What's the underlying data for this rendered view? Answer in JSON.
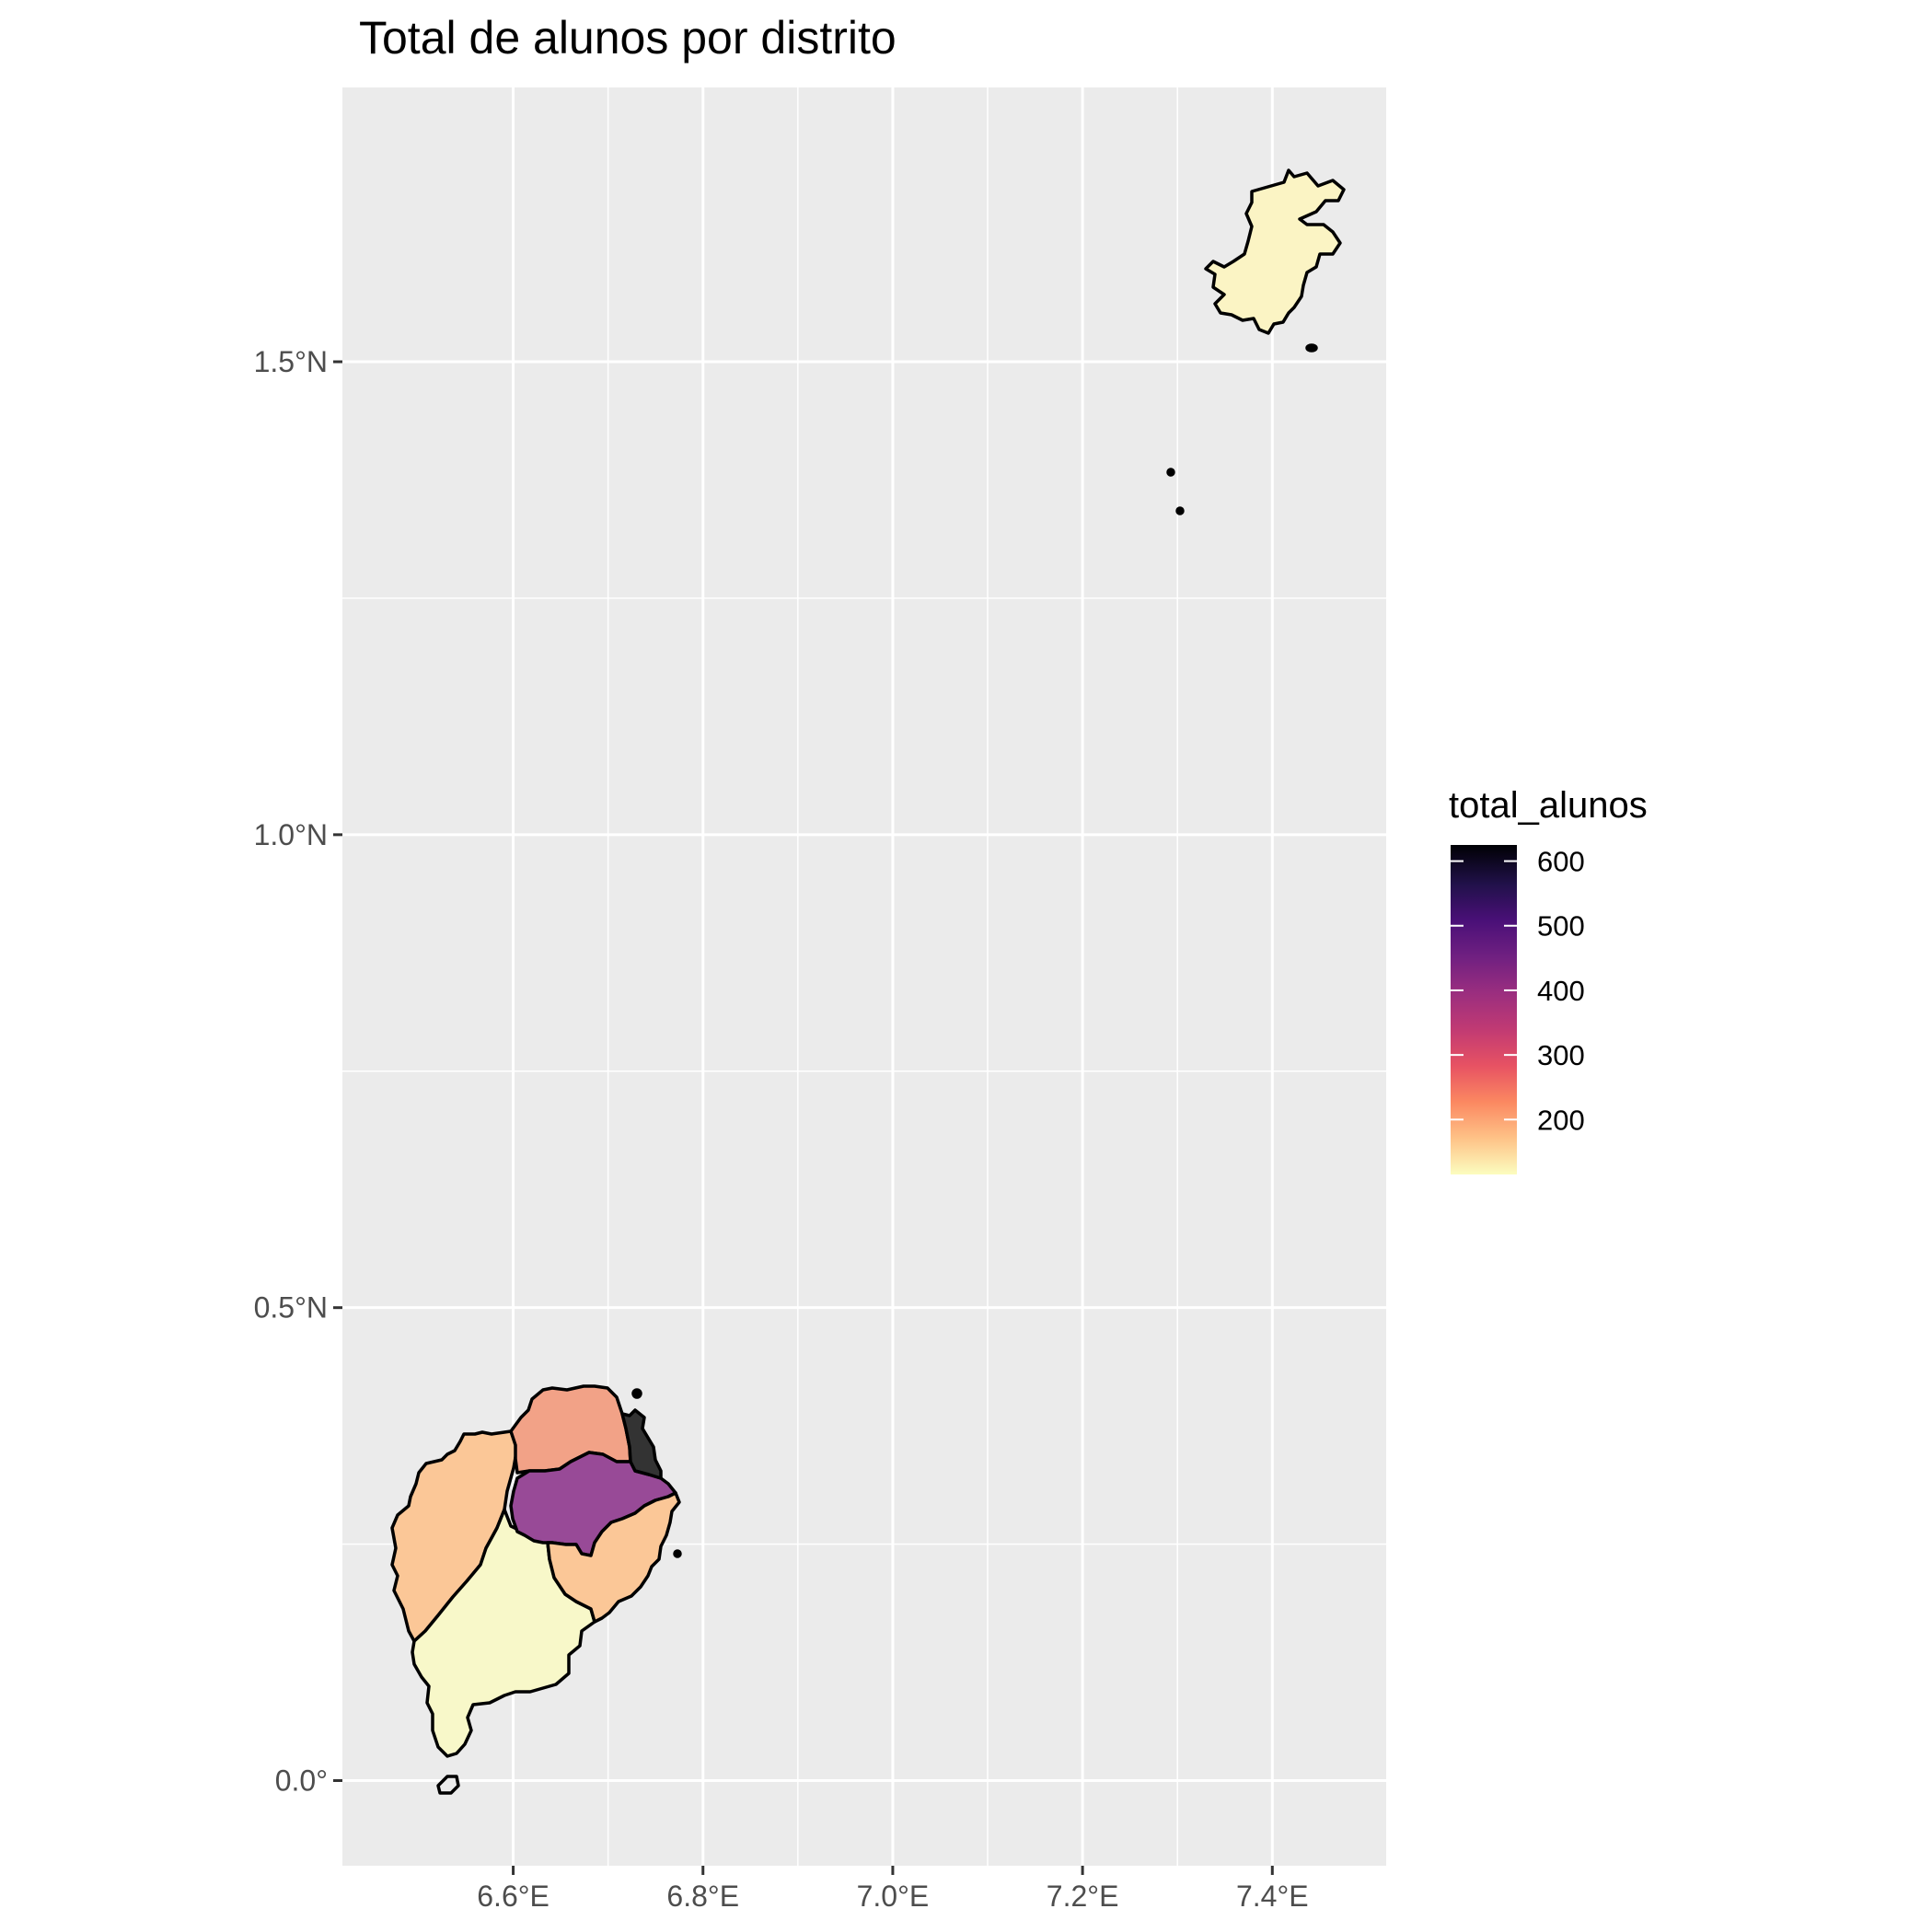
{
  "chart_data": {
    "type": "choropleth map",
    "title": "Total de alunos por distrito",
    "x_ticks": [
      "6.6°E",
      "6.8°E",
      "7.0°E",
      "7.2°E",
      "7.4°E"
    ],
    "y_ticks": [
      "0.0°",
      "0.5°N",
      "1.0°N",
      "1.5°N"
    ],
    "x_tick_values": [
      6.6,
      6.8,
      7.0,
      7.2,
      7.4
    ],
    "y_tick_values": [
      0.0,
      0.5,
      1.0,
      1.5
    ],
    "xlim": [
      6.42,
      7.52
    ],
    "ylim": [
      -0.09,
      1.79
    ],
    "legend": {
      "title": "total_alunos",
      "placement": "right",
      "ticks": [
        600,
        500,
        400,
        300,
        200
      ],
      "range": [
        115,
        625
      ],
      "palette": [
        "#fcfdbf",
        "#fec287",
        "#fb8861",
        "#de4968",
        "#b73779",
        "#8c2981",
        "#641a80",
        "#3b0f70",
        "#140e36",
        "#000004"
      ]
    },
    "regions": [
      {
        "shape": "principe",
        "value": 130,
        "color": "#fbf4c4"
      },
      {
        "shape": "lemba",
        "value": 190,
        "color": "#fbc797"
      },
      {
        "shape": "caue",
        "value": 120,
        "color": "#f8f8c9"
      },
      {
        "shape": "lobata",
        "value": 240,
        "color": "#f2a287"
      },
      {
        "shape": "me-zochi",
        "value": 410,
        "color": "#984a97"
      },
      {
        "shape": "cantagalo",
        "value": 190,
        "color": "#fbc797"
      },
      {
        "shape": "agua-grande",
        "value": 620,
        "color": "#333333"
      }
    ],
    "grid": true
  }
}
